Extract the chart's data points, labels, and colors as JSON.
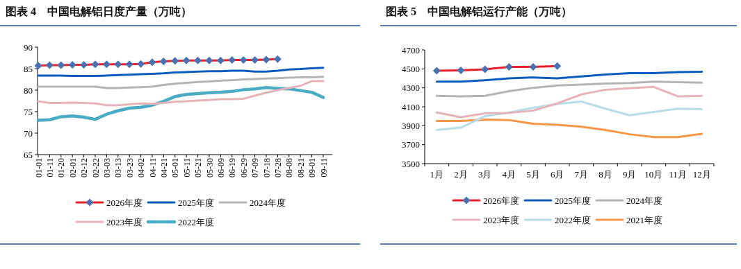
{
  "chart_data": [
    {
      "type": "line",
      "title": "图表 4　中国电解铝日度产量（万吨）",
      "categories": [
        "01-01",
        "01-11",
        "01-20",
        "02-01",
        "02-12",
        "02-22",
        "03-03",
        "03-13",
        "03-23",
        "04-02",
        "04-11",
        "04-21",
        "05-01",
        "05-11",
        "05-21",
        "05-30",
        "06-09",
        "06-19",
        "06-29",
        "07-09",
        "07-18",
        "07-28",
        "08-08",
        "08-21",
        "09-01",
        "09-11"
      ],
      "ylim": [
        65,
        90
      ],
      "yticks": [
        65,
        70,
        75,
        80,
        85,
        90
      ],
      "grid": false,
      "legend": "bottom",
      "line_style": "solid",
      "series": [
        {
          "name": "2026年度",
          "color": "#e8202a",
          "marker": "diamond",
          "colors": [
            "#4a72b0",
            "#4a72b0",
            "#4a72b0",
            "#4a72b0",
            "#4a72b0",
            "#4a72b0",
            "#4a72b0",
            "#4a72b0",
            "#4a72b0",
            "#4a72b0",
            "#4a72b0",
            "#4a72b0",
            "#4a72b0",
            "#4a72b0",
            "#4a72b0",
            "#4a72b0",
            "#4a72b0",
            "#4a72b0",
            "#4a72b0",
            "#4a72b0",
            "#4a72b0",
            "#4a72b0",
            null,
            null,
            null,
            null
          ],
          "values": [
            85.7,
            85.8,
            85.8,
            85.9,
            85.9,
            86.0,
            86.0,
            86.0,
            86.0,
            86.1,
            86.5,
            86.7,
            86.8,
            86.9,
            86.9,
            86.9,
            86.9,
            87.0,
            87.0,
            87.0,
            87.1,
            87.2,
            null,
            null,
            null,
            null
          ]
        },
        {
          "name": "2025年度",
          "color": "#0a5cbf",
          "values": [
            83.4,
            83.4,
            83.4,
            83.3,
            83.3,
            83.3,
            83.4,
            83.5,
            83.6,
            83.7,
            83.8,
            83.9,
            84.1,
            84.2,
            84.3,
            84.4,
            84.4,
            84.5,
            84.5,
            84.3,
            84.3,
            84.5,
            84.8,
            84.9,
            85.1,
            85.2
          ]
        },
        {
          "name": "2024年度",
          "color": "#b4b4b4",
          "values": [
            80.8,
            80.8,
            80.8,
            80.8,
            80.8,
            80.8,
            80.5,
            80.5,
            80.6,
            80.7,
            80.8,
            81.2,
            81.5,
            81.7,
            81.9,
            82.0,
            82.2,
            82.3,
            82.5,
            82.6,
            82.7,
            82.8,
            82.9,
            83.0,
            83.0,
            83.1
          ]
        },
        {
          "name": "2023年度",
          "color": "#e6b4b8",
          "values": [
            77.4,
            77.0,
            77.0,
            77.1,
            77.0,
            76.9,
            76.5,
            76.5,
            76.7,
            76.9,
            76.8,
            77.0,
            77.3,
            77.4,
            77.6,
            77.7,
            77.9,
            77.9,
            78.0,
            78.7,
            79.4,
            80.0,
            80.5,
            81.0,
            82.1,
            82.1
          ]
        },
        {
          "name": "2022年度",
          "color": "#4bacc6",
          "values": [
            73.0,
            73.1,
            73.8,
            74.0,
            73.7,
            73.2,
            74.4,
            75.2,
            75.8,
            76.0,
            76.5,
            77.4,
            78.5,
            79.0,
            79.2,
            79.4,
            79.5,
            79.7,
            80.1,
            80.3,
            80.6,
            80.4,
            80.3,
            79.9,
            79.5,
            78.3
          ]
        }
      ]
    },
    {
      "type": "line",
      "title": "图表 5　中国电解铝运行产能（万吨）",
      "categories": [
        "1月",
        "2月",
        "3月",
        "4月",
        "5月",
        "6月",
        "7月",
        "8月",
        "9月",
        "10月",
        "11月",
        "12月"
      ],
      "ylim": [
        3500,
        4700
      ],
      "yticks": [
        3500,
        3700,
        3900,
        4100,
        4300,
        4500,
        4700
      ],
      "grid": false,
      "legend": "bottom",
      "line_style": "solid",
      "series": [
        {
          "name": "2026年度",
          "color": "#e8202a",
          "marker": "diamond",
          "colors": [
            "#4a72b0",
            "#4a72b0",
            "#4a72b0",
            "#4a72b0",
            "#4a72b0",
            "#4a72b0",
            null,
            null,
            null,
            null,
            null,
            null
          ],
          "values": [
            4480,
            4485,
            4495,
            4520,
            4520,
            4530,
            null,
            null,
            null,
            null,
            null,
            null
          ]
        },
        {
          "name": "2025年度",
          "color": "#0a5cbf",
          "values": [
            4365,
            4365,
            4380,
            4400,
            4410,
            4400,
            4420,
            4440,
            4455,
            4455,
            4465,
            4470
          ]
        },
        {
          "name": "2024年度",
          "color": "#b4b4b4",
          "values": [
            4215,
            4210,
            4215,
            4265,
            4300,
            4325,
            4335,
            4345,
            4350,
            4365,
            4360,
            4355
          ]
        },
        {
          "name": "2023年度",
          "color": "#e6b4b8",
          "values": [
            4040,
            3990,
            4030,
            4035,
            4060,
            4135,
            4230,
            4280,
            4295,
            4310,
            4210,
            4215
          ]
        },
        {
          "name": "2022年度",
          "color": "#b7dde8",
          "values": [
            3855,
            3880,
            4000,
            4040,
            4090,
            4130,
            4155,
            4080,
            4010,
            4045,
            4080,
            4075
          ]
        },
        {
          "name": "2021年度",
          "color": "#f79646",
          "values": [
            3950,
            3950,
            3965,
            3960,
            3920,
            3910,
            3890,
            3855,
            3810,
            3780,
            3780,
            3815
          ]
        }
      ]
    }
  ]
}
